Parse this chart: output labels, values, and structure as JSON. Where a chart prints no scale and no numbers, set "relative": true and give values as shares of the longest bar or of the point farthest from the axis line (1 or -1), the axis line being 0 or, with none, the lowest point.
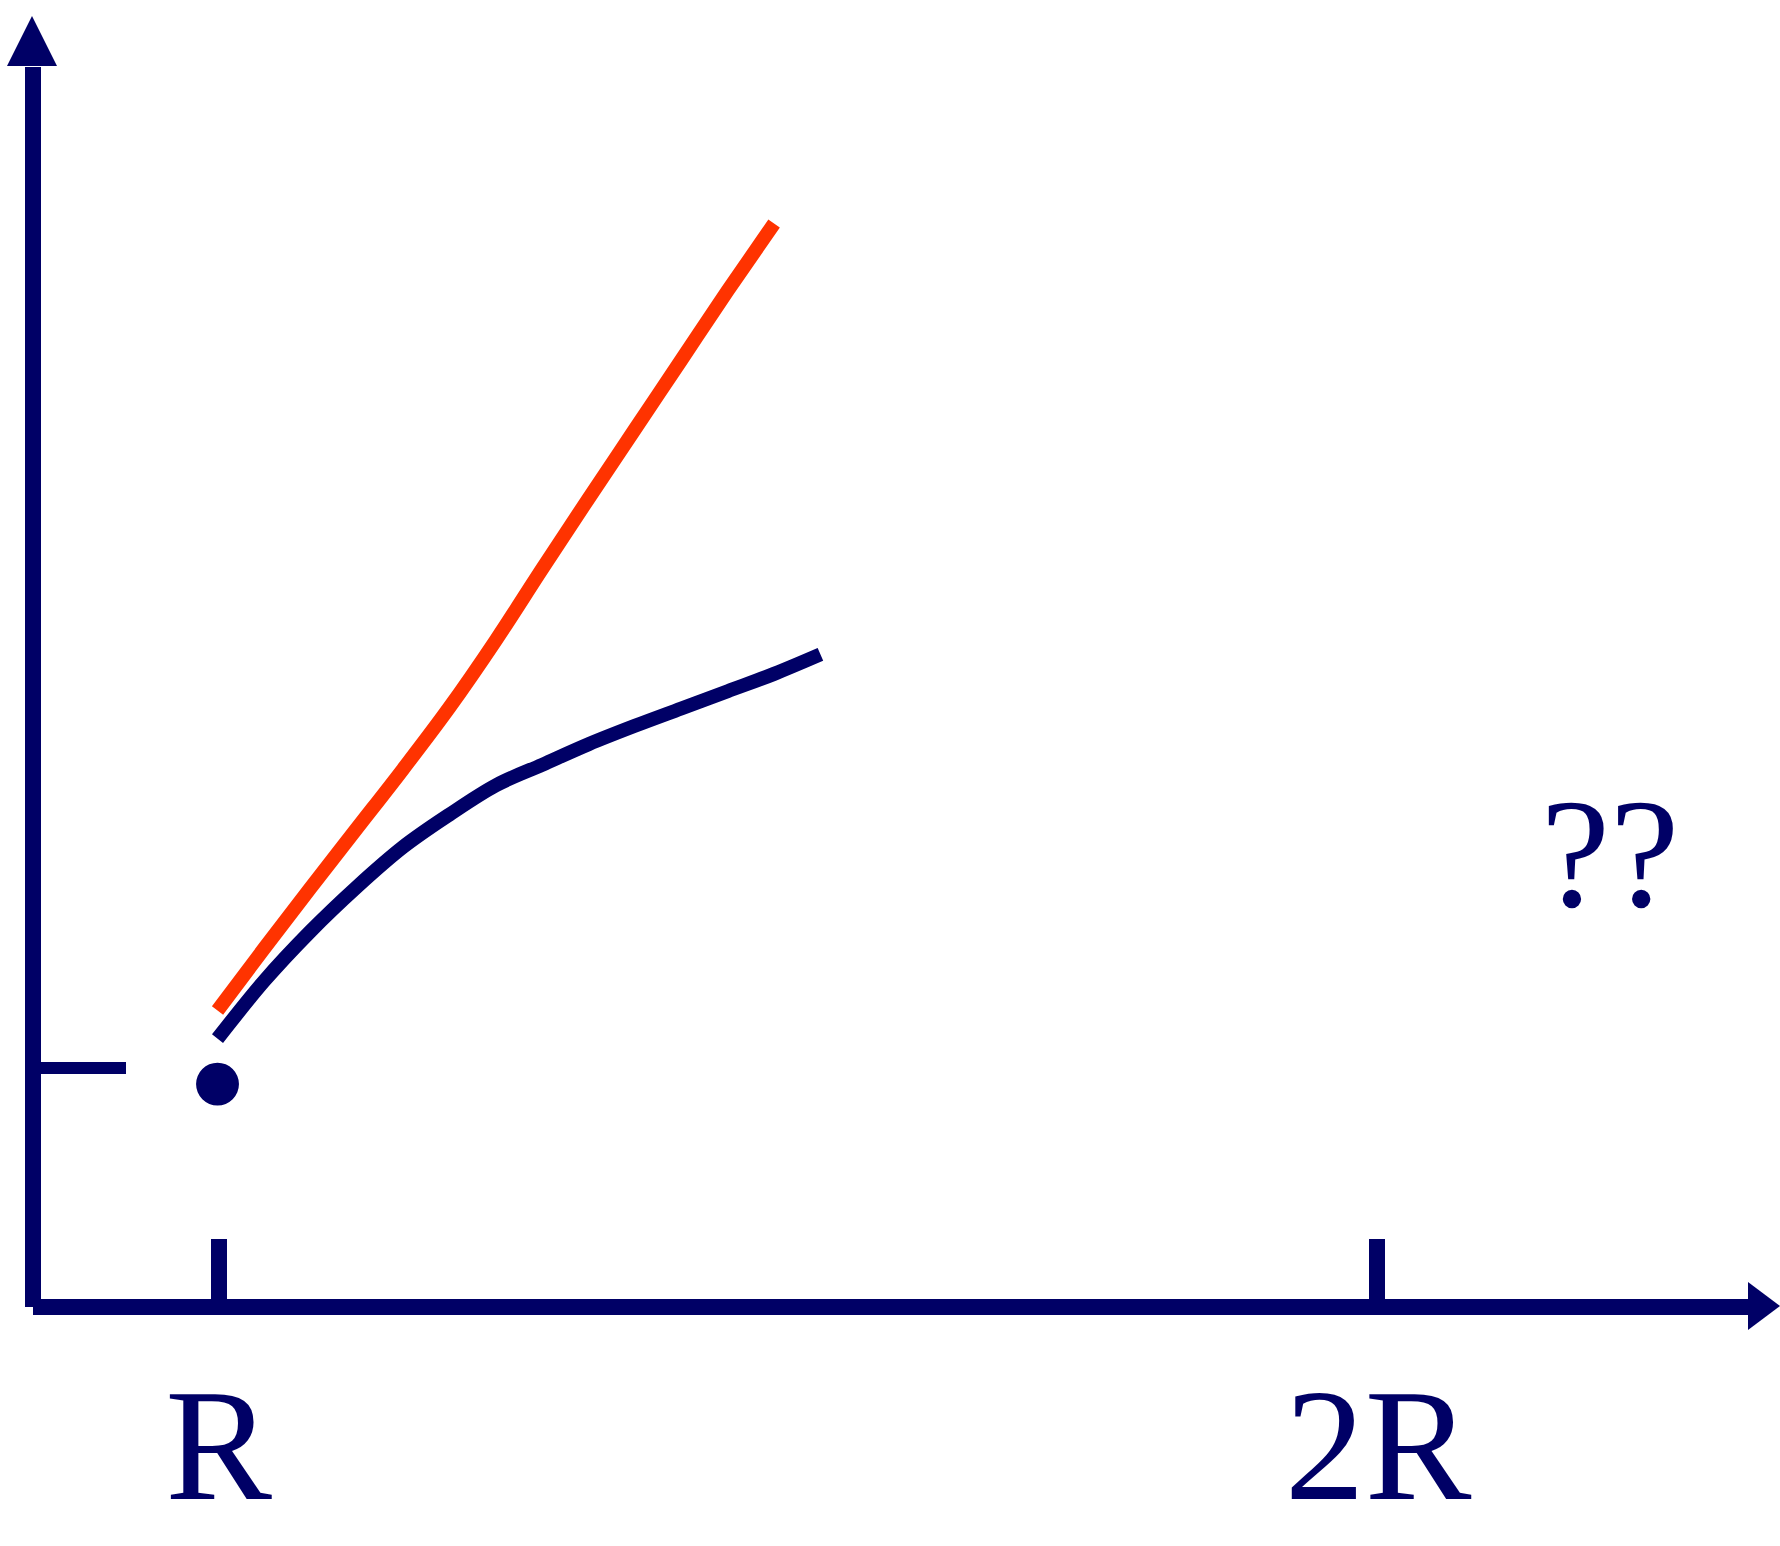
{
  "chart_data": {
    "type": "line",
    "relative": true,
    "categories": [
      null,
      null,
      null,
      null,
      "R",
      null,
      null,
      null,
      null,
      null,
      null,
      null,
      null,
      null,
      null,
      null,
      null,
      null,
      null,
      null,
      null,
      null,
      null,
      null,
      null,
      null,
      null,
      null,
      null,
      "2R",
      null,
      null,
      null,
      null,
      null,
      null,
      null,
      null
    ],
    "tick_labels": "x",
    "annotations": [
      "??"
    ],
    "series": [
      {
        "color": "#ff3300",
        "values": [
          null,
          null,
          null,
          null,
          0.273,
          0.33,
          0.386,
          0.441,
          0.496,
          0.553,
          0.615,
          0.681,
          0.746,
          0.81,
          0.874,
          0.938,
          1.0,
          null,
          null,
          null,
          null,
          null,
          null,
          null,
          null,
          null,
          null,
          null,
          null,
          null,
          null,
          null,
          null,
          null,
          null,
          null,
          null,
          null
        ]
      },
      {
        "color": "#000066",
        "values": [
          null,
          null,
          null,
          null,
          0.247,
          0.3,
          0.346,
          0.387,
          0.424,
          0.454,
          0.481,
          0.5,
          0.519,
          0.536,
          0.552,
          0.568,
          0.584,
          0.602,
          null,
          null,
          null,
          null,
          null,
          null,
          null,
          null,
          null,
          null,
          null,
          null,
          null,
          null,
          null,
          null,
          null,
          null,
          null,
          null
        ]
      },
      {
        "type": "scatter",
        "color": "#000066",
        "marker": "circle",
        "values": [
          null,
          null,
          null,
          null,
          0.205,
          null,
          null,
          null,
          null,
          null,
          null,
          null,
          null,
          null,
          null,
          null,
          null,
          null,
          null,
          null,
          null,
          null,
          null,
          null,
          null,
          null,
          null,
          null,
          null,
          null,
          null,
          null,
          null,
          null,
          null,
          null,
          null,
          null
        ]
      }
    ]
  }
}
